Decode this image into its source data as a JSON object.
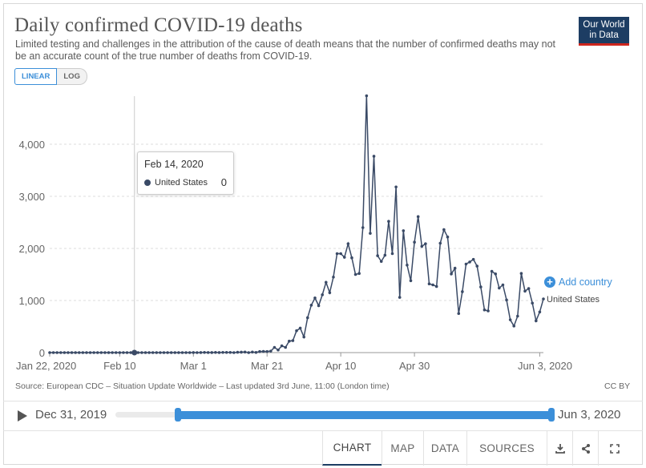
{
  "header": {
    "title": "Daily confirmed COVID-19 deaths",
    "subtitle": "Limited testing and challenges in the attribution of the cause of death means that the number of confirmed deaths may not be an accurate count of the true number of deaths from COVID-19.",
    "logo_line1": "Our World",
    "logo_line2": "in Data"
  },
  "scale_toggle": {
    "linear_label": "LINEAR",
    "log_label": "LOG",
    "selected": "LINEAR"
  },
  "tooltip": {
    "date": "Feb 14, 2020",
    "entity": "United States",
    "value": "0"
  },
  "add_country_label": "Add country",
  "footer": {
    "source": "Source: European CDC – Situation Update Worldwide – Last updated 3rd June, 11:00 (London time)",
    "license": "CC BY"
  },
  "timeline": {
    "start_label": "Dec 31, 2019",
    "end_label": "Jun 3, 2020",
    "range_start_fraction": 0.14,
    "range_end_fraction": 1.0
  },
  "tabs": [
    {
      "label": "CHART",
      "active": true
    },
    {
      "label": "MAP",
      "active": false
    },
    {
      "label": "DATA",
      "active": false
    },
    {
      "label": "SOURCES",
      "active": false
    }
  ],
  "toolbar_icons": [
    "download-icon",
    "share-icon",
    "fullscreen-icon"
  ],
  "colors": {
    "line": "#3a4a66",
    "accent": "#3c8fd9",
    "logo_bg": "#1d3d63",
    "logo_rule": "#ce261e"
  },
  "chart_data": {
    "type": "line",
    "title": "Daily confirmed COVID-19 deaths",
    "xlabel": "",
    "ylabel": "",
    "x_start": "Jan 22, 2020",
    "x_end": "Jun 3, 2020",
    "x_ticks": [
      {
        "label": "Jan 22, 2020",
        "day": 0
      },
      {
        "label": "Feb 10",
        "day": 19
      },
      {
        "label": "Mar 1",
        "day": 39
      },
      {
        "label": "Mar 21",
        "day": 59
      },
      {
        "label": "Apr 10",
        "day": 79
      },
      {
        "label": "Apr 30",
        "day": 99
      },
      {
        "label": "Jun 3, 2020",
        "day": 133
      }
    ],
    "y_ticks": [
      0,
      1000,
      2000,
      3000,
      4000
    ],
    "y_tick_labels": [
      "0",
      "1,000",
      "2,000",
      "3,000",
      "4,000"
    ],
    "ylim": [
      0,
      4700
    ],
    "highlight_day": 23,
    "series": [
      {
        "name": "United States",
        "values": [
          0,
          0,
          0,
          0,
          0,
          0,
          0,
          0,
          0,
          0,
          0,
          0,
          0,
          0,
          0,
          0,
          0,
          0,
          0,
          0,
          0,
          0,
          0,
          0,
          0,
          0,
          0,
          0,
          0,
          0,
          0,
          0,
          0,
          0,
          0,
          0,
          0,
          0,
          0,
          1,
          0,
          1,
          3,
          2,
          1,
          3,
          1,
          3,
          4,
          4,
          0,
          6,
          8,
          11,
          0,
          10,
          4,
          20,
          23,
          21,
          28,
          100,
          50,
          130,
          100,
          220,
          230,
          420,
          470,
          300,
          670,
          910,
          1050,
          900,
          1110,
          1350,
          1150,
          1450,
          1900,
          1900,
          1830,
          2090,
          1820,
          1500,
          1520,
          2400,
          4930,
          2290,
          3770,
          1860,
          1750,
          1870,
          2520,
          1900,
          3180,
          1060,
          2340,
          1680,
          1380,
          2120,
          2610,
          2040,
          2090,
          1320,
          1300,
          1270,
          2100,
          2360,
          2220,
          1510,
          1620,
          750,
          1170,
          1700,
          1740,
          1790,
          1660,
          1260,
          820,
          800,
          1560,
          1510,
          1240,
          1300,
          1010,
          630,
          510,
          700,
          1520,
          1180,
          1230,
          950,
          610,
          780,
          1030
        ]
      }
    ]
  }
}
